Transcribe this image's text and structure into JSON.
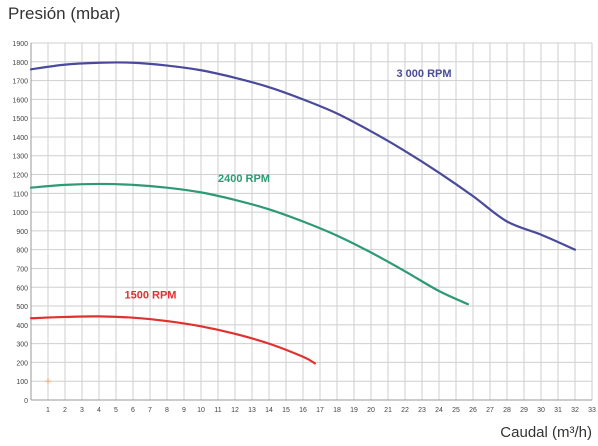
{
  "chart_data": {
    "type": "line",
    "title": "",
    "ylabel": "Presión (mbar)",
    "xlabel": "Caudal (m³/h)",
    "xlim": [
      0,
      33
    ],
    "ylim": [
      0,
      1900
    ],
    "x_ticks": [
      1,
      2,
      3,
      4,
      5,
      6,
      7,
      8,
      9,
      10,
      11,
      12,
      13,
      14,
      15,
      16,
      17,
      18,
      19,
      20,
      21,
      22,
      23,
      24,
      25,
      26,
      27,
      28,
      29,
      30,
      31,
      32,
      33
    ],
    "y_ticks": [
      0,
      100,
      200,
      300,
      400,
      500,
      600,
      700,
      800,
      900,
      1000,
      1100,
      1200,
      1300,
      1400,
      1500,
      1600,
      1700,
      1800,
      1900
    ],
    "grid": true,
    "series": [
      {
        "name": "3 000 RPM",
        "color": "#4a4a9a",
        "x": [
          0,
          2,
          4,
          6,
          8,
          10,
          12,
          14,
          16,
          18,
          20,
          22,
          24,
          26,
          28,
          30,
          32
        ],
        "y": [
          1760,
          1785,
          1795,
          1795,
          1780,
          1755,
          1715,
          1665,
          1600,
          1525,
          1430,
          1325,
          1210,
          1085,
          950,
          880,
          800
        ]
      },
      {
        "name": "2400 RPM",
        "color": "#2e9a73",
        "x": [
          0,
          2,
          4,
          6,
          8,
          10,
          12,
          14,
          16,
          18,
          20,
          22,
          24,
          25.7
        ],
        "y": [
          1130,
          1145,
          1150,
          1145,
          1130,
          1105,
          1065,
          1015,
          950,
          875,
          785,
          685,
          580,
          510
        ]
      },
      {
        "name": "1500 RPM",
        "color": "#e03030",
        "x": [
          0,
          2,
          4,
          6,
          8,
          10,
          12,
          14,
          16,
          16.7
        ],
        "y": [
          435,
          442,
          445,
          438,
          420,
          392,
          352,
          300,
          230,
          195
        ]
      }
    ],
    "labels": [
      {
        "text": "3 000 RPM",
        "x": 21.5,
        "y": 1720,
        "color": "#4a4a9a"
      },
      {
        "text": "2400 RPM",
        "x": 11,
        "y": 1160,
        "color": "#2e9a73"
      },
      {
        "text": "1500 RPM",
        "x": 5.5,
        "y": 540,
        "color": "#e03030"
      }
    ],
    "marker": {
      "x": 1,
      "y": 100,
      "color": "#f0b080"
    }
  }
}
